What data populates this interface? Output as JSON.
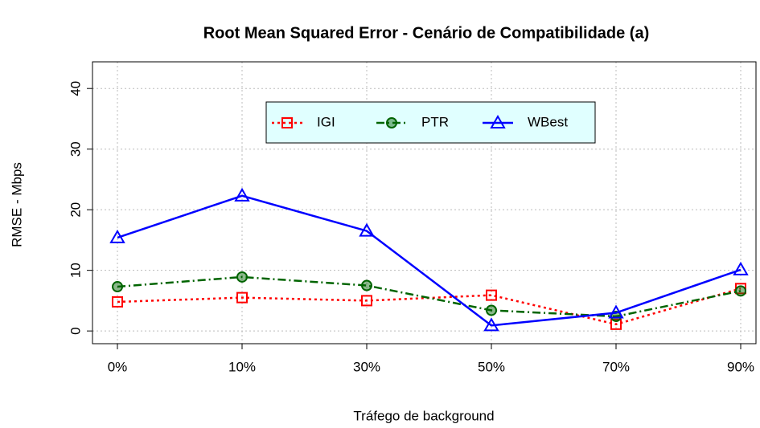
{
  "chart_data": {
    "type": "line",
    "title": "Root Mean Squared Error - Cenário de Compatibilidade (a)",
    "x_label": "Tráfego de background",
    "y_label": "RMSE - Mbps",
    "categories": [
      "0%",
      "10%",
      "30%",
      "50%",
      "70%",
      "90%"
    ],
    "series": [
      {
        "name": "IGI",
        "color": "#ff0000",
        "marker": "square",
        "dash": "dotted",
        "values": [
          4.8,
          5.5,
          5.0,
          5.9,
          1.1,
          7.0
        ]
      },
      {
        "name": "PTR",
        "color": "#006400",
        "marker": "circle",
        "dash": "dashdot",
        "values": [
          7.3,
          8.9,
          7.5,
          3.4,
          2.4,
          6.6
        ]
      },
      {
        "name": "WBest",
        "color": "#0000ff",
        "marker": "triangle",
        "dash": "solid",
        "values": [
          15.4,
          22.3,
          16.5,
          0.9,
          3.0,
          10.1
        ]
      }
    ],
    "ylim": [
      -2.1,
      44.4
    ],
    "yticks": [
      0,
      10,
      20,
      30,
      40
    ],
    "grid": true,
    "legend": "top"
  }
}
